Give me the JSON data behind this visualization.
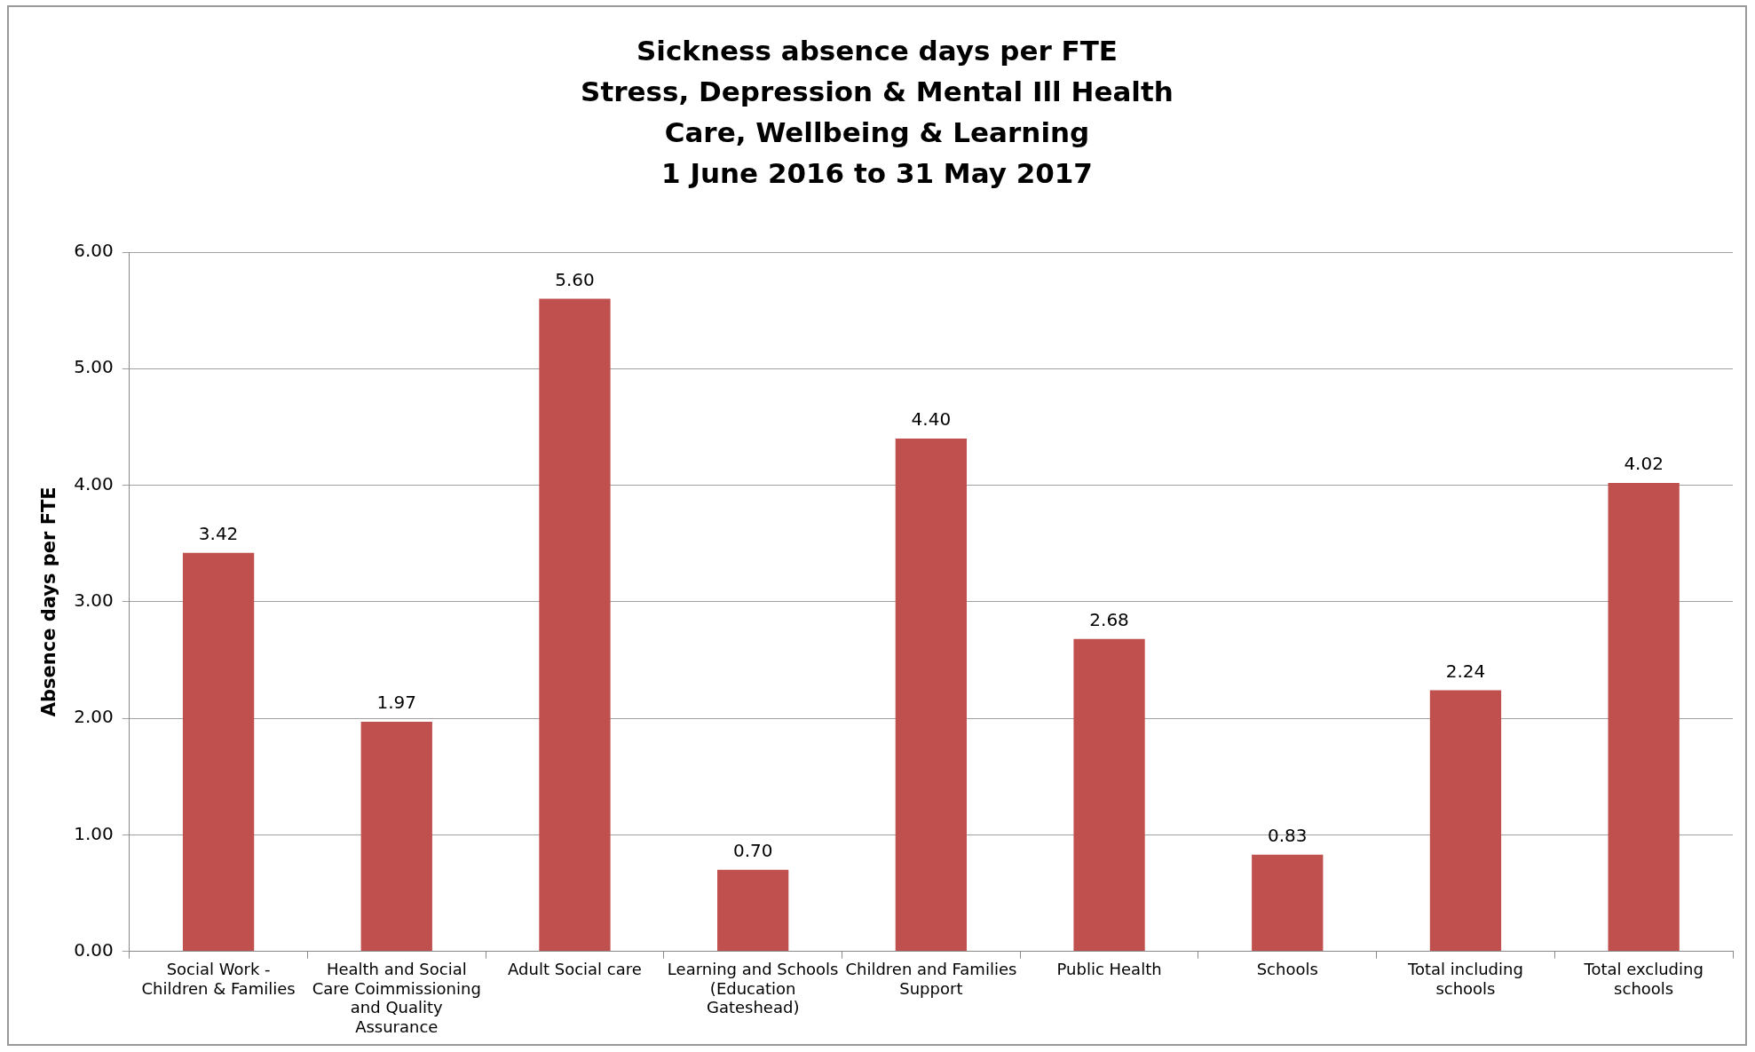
{
  "chart_data": {
    "type": "bar",
    "title": "Sickness absence days per FTE\nStress, Depression & Mental Ill Health\nCare, Wellbeing & Learning\n1 June 2016 to 31 May 2017",
    "ylabel": "Absence days per FTE",
    "categories": [
      "Social Work - Children & Families",
      "Health and Social Care Coimmissioning and Quality Assurance",
      "Adult Social care",
      "Learning and Schools (Education Gateshead)",
      "Children and Families Support",
      "Public Health",
      "Schools",
      "Total including schools",
      "Total excluding schools"
    ],
    "values": [
      3.42,
      1.97,
      5.6,
      0.7,
      4.4,
      2.68,
      0.83,
      2.24,
      4.02
    ],
    "value_labels": [
      "3.42",
      "1.97",
      "5.60",
      "0.70",
      "4.40",
      "2.68",
      "0.83",
      "2.24",
      "4.02"
    ],
    "color": "#c0504d",
    "ylim": [
      0,
      6
    ],
    "yticks": [
      {
        "value": 0,
        "label": "0.00"
      },
      {
        "value": 1,
        "label": "1.00"
      },
      {
        "value": 2,
        "label": "2.00"
      },
      {
        "value": 3,
        "label": "3.00"
      },
      {
        "value": 4,
        "label": "4.00"
      },
      {
        "value": 5,
        "label": "5.00"
      },
      {
        "value": 6,
        "label": "6.00"
      }
    ],
    "grid": "y",
    "legend": false
  }
}
